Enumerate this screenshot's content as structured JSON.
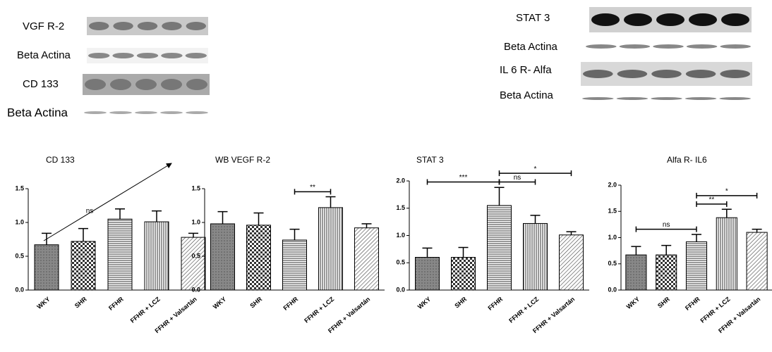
{
  "blots": {
    "left": [
      "VGF R-2",
      "Beta Actina",
      "CD 133",
      "Beta Actina"
    ],
    "right": [
      "STAT 3",
      "Beta Actina",
      "IL 6 R- Alfa",
      "Beta Actina"
    ]
  },
  "chart_data": [
    {
      "type": "bar",
      "title": "CD 133",
      "annotation": "ns",
      "categories": [
        "WKY",
        "SHR",
        "FFHR",
        "FFHR + LCZ",
        "FFHR + Valsartán"
      ],
      "values": [
        0.67,
        0.72,
        1.05,
        1.01,
        0.78
      ],
      "errors": [
        0.17,
        0.19,
        0.15,
        0.16,
        0.06
      ],
      "ylim": [
        0,
        1.5
      ],
      "yticks": [
        {
          "value": 0,
          "label": "0.0"
        },
        0.5,
        {
          "value": 1,
          "label": "1.0"
        },
        1.5
      ],
      "comparisons": []
    },
    {
      "type": "bar",
      "title": "WB VEGF R-2",
      "categories": [
        "WKY",
        "SHR",
        "FFHR",
        "FFHR + LCZ",
        "FFHR + Valsartán"
      ],
      "values": [
        0.98,
        0.96,
        0.74,
        1.22,
        0.92
      ],
      "errors": [
        0.18,
        0.18,
        0.16,
        0.16,
        0.06
      ],
      "ylim": [
        0,
        1.5
      ],
      "yticks": [
        {
          "value": 0,
          "label": "0.0"
        },
        0.5,
        {
          "value": 1,
          "label": "1.0"
        },
        1.5
      ],
      "comparisons": [
        {
          "label": "**",
          "from": 2,
          "to": 3
        }
      ]
    },
    {
      "type": "bar",
      "title": "STAT 3",
      "categories": [
        "WKY",
        "SHR",
        "FFHR",
        "FFHR + LCZ",
        "FFHR + Valsartán"
      ],
      "values": [
        0.6,
        0.6,
        1.55,
        1.22,
        1.01
      ],
      "errors": [
        0.17,
        0.18,
        0.33,
        0.15,
        0.06
      ],
      "ylim": [
        0,
        2
      ],
      "yticks": [
        {
          "value": 0,
          "label": "0.0"
        },
        0.5,
        {
          "value": 1,
          "label": "1.0"
        },
        1.5,
        {
          "value": 2,
          "label": "2.0"
        }
      ],
      "comparisons": [
        {
          "label": "***",
          "from": 0,
          "to": 2
        },
        {
          "label": "ns",
          "from": 2,
          "to": 3
        },
        {
          "label": "*",
          "from": 2,
          "to": 4
        }
      ]
    },
    {
      "type": "bar",
      "title": "Alfa R- IL6",
      "categories": [
        "WKY",
        "SHR",
        "FFHR",
        "FFHR + LCZ",
        "FFHR + Valsartán"
      ],
      "values": [
        0.67,
        0.67,
        0.92,
        1.38,
        1.1
      ],
      "errors": [
        0.16,
        0.18,
        0.14,
        0.16,
        0.06
      ],
      "ylim": [
        0,
        2
      ],
      "yticks": [
        {
          "value": 0,
          "label": "0.0"
        },
        0.5,
        {
          "value": 1,
          "label": "1.0"
        },
        1.5,
        {
          "value": 2,
          "label": "2.0"
        }
      ],
      "comparisons": [
        {
          "label": "ns",
          "from": 0,
          "to": 2
        },
        {
          "label": "**",
          "from": 2,
          "to": 3
        },
        {
          "label": "*",
          "from": 2,
          "to": 4
        }
      ]
    }
  ]
}
